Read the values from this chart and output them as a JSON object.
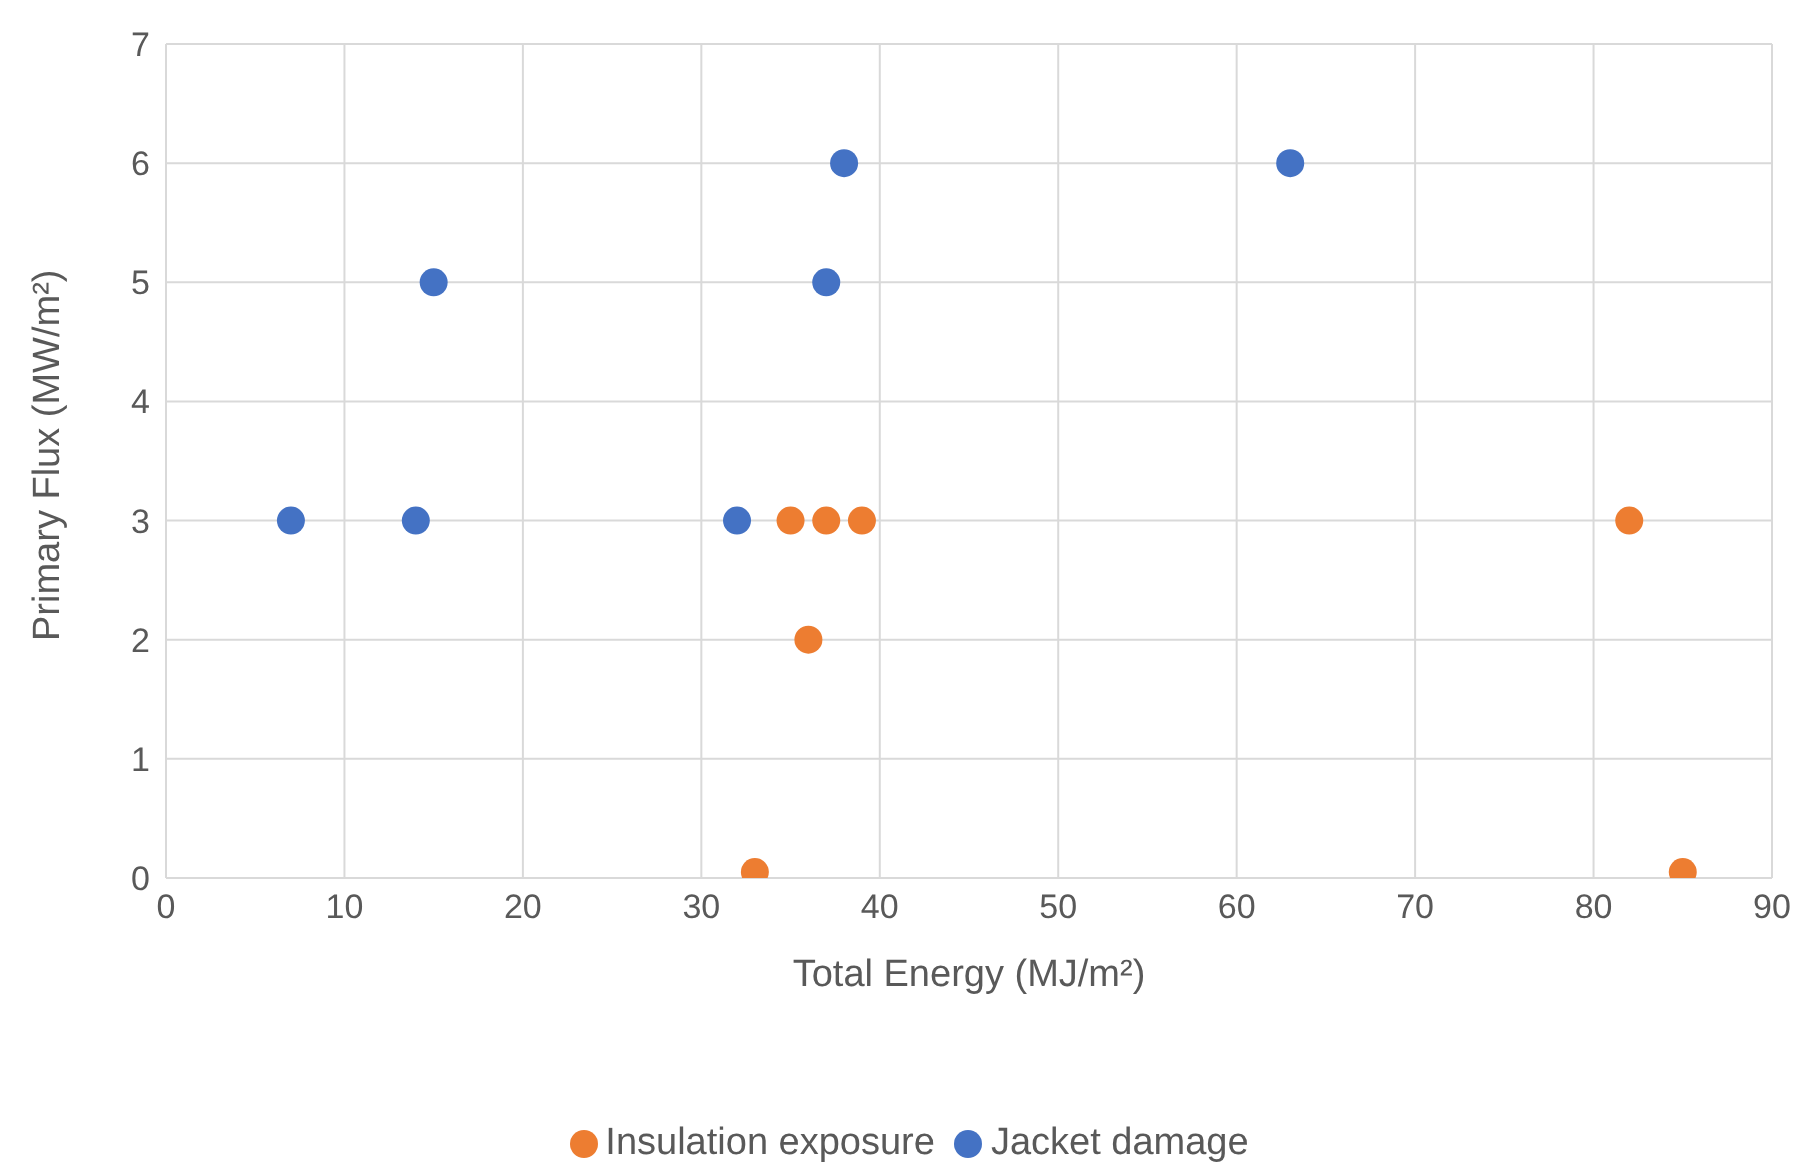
{
  "chart_data": {
    "type": "scatter",
    "xlabel": "Total Energy (MJ/m²)",
    "ylabel": "Primary Flux (MW/m²)",
    "xlim": [
      0,
      90
    ],
    "xticks": [
      0,
      10,
      20,
      30,
      40,
      50,
      60,
      70,
      80,
      90
    ],
    "ylim": [
      0,
      7
    ],
    "yticks": [
      0,
      1,
      2,
      3,
      4,
      5,
      6,
      7
    ],
    "grid": true,
    "legend": "bottom",
    "marker": "circle",
    "series": [
      {
        "name": "Jacket damage",
        "color": "#4472c4",
        "x": [
          7,
          14,
          15,
          32,
          37,
          38,
          63
        ],
        "values": [
          3,
          3,
          5,
          3,
          5,
          6,
          6
        ]
      },
      {
        "name": "Insulation exposure",
        "color": "#ed7d31",
        "x": [
          33,
          35,
          36,
          37,
          39,
          82,
          85
        ],
        "values": [
          0.05,
          3,
          2,
          3,
          3,
          3,
          0.05
        ]
      }
    ]
  }
}
